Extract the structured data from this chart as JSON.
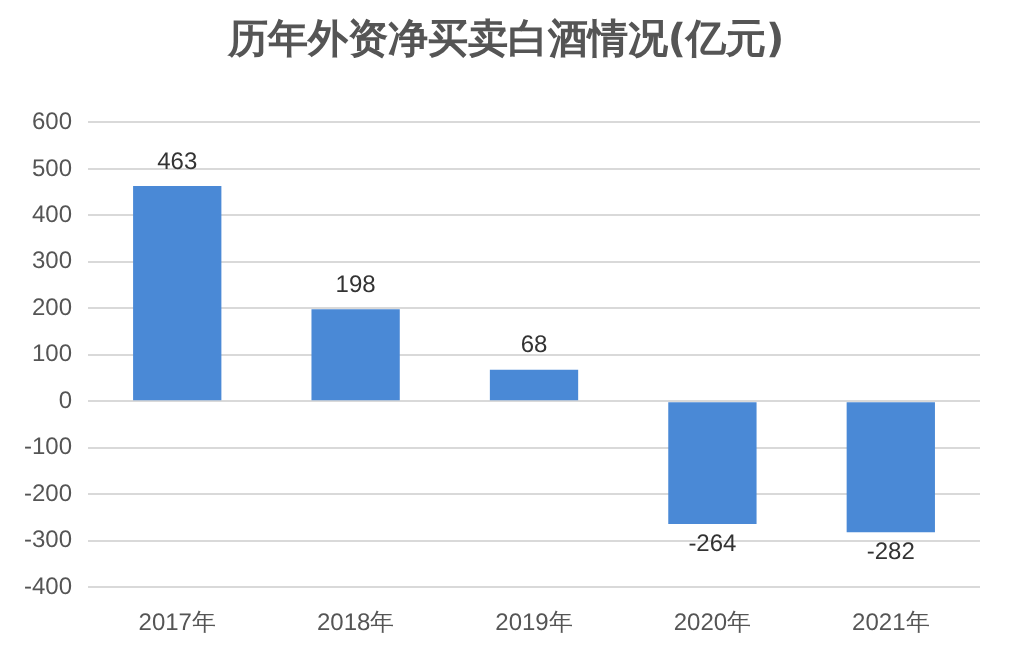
{
  "chart_data": {
    "type": "bar",
    "title": "历年外资净买卖白酒情况(亿元)",
    "categories": [
      "2017年",
      "2018年",
      "2019年",
      "2020年",
      "2021年"
    ],
    "values": [
      463,
      198,
      68,
      -264,
      -282
    ],
    "color": "#4a89d6",
    "ylim": [
      -400,
      600
    ],
    "yticks": [
      -400,
      -300,
      -200,
      -100,
      0,
      100,
      200,
      300,
      400,
      500,
      600
    ],
    "grid": "y",
    "data_labels": true
  }
}
